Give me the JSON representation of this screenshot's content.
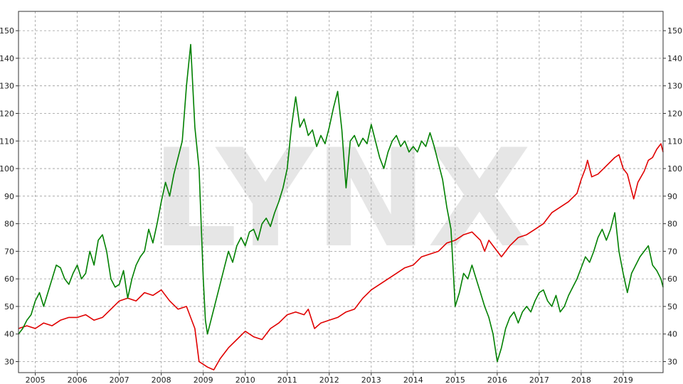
{
  "chart_data": {
    "type": "line",
    "title": "",
    "xlabel": "",
    "ylabel": "",
    "watermark": "LYNX",
    "xlim": [
      2004.6,
      2019.95
    ],
    "ylim": [
      26,
      157
    ],
    "x_ticks": [
      2005,
      2006,
      2007,
      2008,
      2009,
      2010,
      2011,
      2012,
      2013,
      2014,
      2015,
      2016,
      2017,
      2018,
      2019
    ],
    "y_ticks": [
      30,
      40,
      50,
      60,
      70,
      80,
      90,
      100,
      110,
      120,
      130,
      140,
      150
    ],
    "grid": true,
    "legend": "none",
    "series": [
      {
        "color": "#e00000",
        "points": [
          [
            2004.6,
            42
          ],
          [
            2004.8,
            43
          ],
          [
            2005.0,
            42
          ],
          [
            2005.2,
            44
          ],
          [
            2005.4,
            43
          ],
          [
            2005.6,
            45
          ],
          [
            2005.8,
            46
          ],
          [
            2006.0,
            46
          ],
          [
            2006.2,
            47
          ],
          [
            2006.4,
            45
          ],
          [
            2006.6,
            46
          ],
          [
            2006.8,
            49
          ],
          [
            2007.0,
            52
          ],
          [
            2007.2,
            53
          ],
          [
            2007.4,
            52
          ],
          [
            2007.6,
            55
          ],
          [
            2007.8,
            54
          ],
          [
            2008.0,
            56
          ],
          [
            2008.2,
            52
          ],
          [
            2008.4,
            49
          ],
          [
            2008.6,
            50
          ],
          [
            2008.8,
            42
          ],
          [
            2008.9,
            30
          ],
          [
            2009.1,
            28
          ],
          [
            2009.25,
            27
          ],
          [
            2009.4,
            31
          ],
          [
            2009.6,
            35
          ],
          [
            2009.8,
            38
          ],
          [
            2010.0,
            41
          ],
          [
            2010.2,
            39
          ],
          [
            2010.4,
            38
          ],
          [
            2010.6,
            42
          ],
          [
            2010.8,
            44
          ],
          [
            2011.0,
            47
          ],
          [
            2011.2,
            48
          ],
          [
            2011.4,
            47
          ],
          [
            2011.5,
            49
          ],
          [
            2011.65,
            42
          ],
          [
            2011.8,
            44
          ],
          [
            2012.0,
            45
          ],
          [
            2012.2,
            46
          ],
          [
            2012.4,
            48
          ],
          [
            2012.6,
            49
          ],
          [
            2012.8,
            53
          ],
          [
            2013.0,
            56
          ],
          [
            2013.2,
            58
          ],
          [
            2013.4,
            60
          ],
          [
            2013.6,
            62
          ],
          [
            2013.8,
            64
          ],
          [
            2014.0,
            65
          ],
          [
            2014.2,
            68
          ],
          [
            2014.4,
            69
          ],
          [
            2014.6,
            70
          ],
          [
            2014.8,
            73
          ],
          [
            2015.0,
            74
          ],
          [
            2015.2,
            76
          ],
          [
            2015.4,
            77
          ],
          [
            2015.6,
            74
          ],
          [
            2015.7,
            70
          ],
          [
            2015.8,
            74
          ],
          [
            2016.0,
            70
          ],
          [
            2016.1,
            68
          ],
          [
            2016.3,
            72
          ],
          [
            2016.5,
            75
          ],
          [
            2016.7,
            76
          ],
          [
            2016.9,
            78
          ],
          [
            2017.1,
            80
          ],
          [
            2017.3,
            84
          ],
          [
            2017.5,
            86
          ],
          [
            2017.7,
            88
          ],
          [
            2017.9,
            91
          ],
          [
            2018.0,
            96
          ],
          [
            2018.1,
            100
          ],
          [
            2018.15,
            103
          ],
          [
            2018.25,
            97
          ],
          [
            2018.4,
            98
          ],
          [
            2018.6,
            101
          ],
          [
            2018.8,
            104
          ],
          [
            2018.9,
            105
          ],
          [
            2019.0,
            100
          ],
          [
            2019.1,
            98
          ],
          [
            2019.2,
            92
          ],
          [
            2019.25,
            89
          ],
          [
            2019.35,
            95
          ],
          [
            2019.5,
            99
          ],
          [
            2019.6,
            103
          ],
          [
            2019.7,
            104
          ],
          [
            2019.8,
            107
          ],
          [
            2019.9,
            109
          ],
          [
            2019.95,
            106
          ]
        ]
      },
      {
        "color": "#008000",
        "points": [
          [
            2004.6,
            40
          ],
          [
            2004.7,
            42
          ],
          [
            2004.8,
            45
          ],
          [
            2004.9,
            47
          ],
          [
            2005.0,
            52
          ],
          [
            2005.1,
            55
          ],
          [
            2005.2,
            50
          ],
          [
            2005.3,
            55
          ],
          [
            2005.4,
            60
          ],
          [
            2005.5,
            65
          ],
          [
            2005.6,
            64
          ],
          [
            2005.7,
            60
          ],
          [
            2005.8,
            58
          ],
          [
            2005.9,
            62
          ],
          [
            2006.0,
            65
          ],
          [
            2006.1,
            60
          ],
          [
            2006.2,
            62
          ],
          [
            2006.3,
            70
          ],
          [
            2006.4,
            65
          ],
          [
            2006.5,
            74
          ],
          [
            2006.6,
            76
          ],
          [
            2006.7,
            70
          ],
          [
            2006.8,
            60
          ],
          [
            2006.9,
            57
          ],
          [
            2007.0,
            58
          ],
          [
            2007.1,
            63
          ],
          [
            2007.2,
            53
          ],
          [
            2007.3,
            60
          ],
          [
            2007.4,
            65
          ],
          [
            2007.5,
            68
          ],
          [
            2007.6,
            70
          ],
          [
            2007.7,
            78
          ],
          [
            2007.8,
            73
          ],
          [
            2007.9,
            80
          ],
          [
            2008.0,
            88
          ],
          [
            2008.1,
            95
          ],
          [
            2008.2,
            90
          ],
          [
            2008.3,
            98
          ],
          [
            2008.4,
            104
          ],
          [
            2008.5,
            110
          ],
          [
            2008.6,
            130
          ],
          [
            2008.7,
            145
          ],
          [
            2008.8,
            115
          ],
          [
            2008.9,
            100
          ],
          [
            2009.0,
            60
          ],
          [
            2009.05,
            45
          ],
          [
            2009.1,
            40
          ],
          [
            2009.2,
            46
          ],
          [
            2009.3,
            52
          ],
          [
            2009.4,
            58
          ],
          [
            2009.5,
            64
          ],
          [
            2009.6,
            70
          ],
          [
            2009.7,
            66
          ],
          [
            2009.8,
            72
          ],
          [
            2009.9,
            75
          ],
          [
            2010.0,
            72
          ],
          [
            2010.1,
            77
          ],
          [
            2010.2,
            78
          ],
          [
            2010.3,
            74
          ],
          [
            2010.4,
            80
          ],
          [
            2010.5,
            82
          ],
          [
            2010.6,
            79
          ],
          [
            2010.7,
            84
          ],
          [
            2010.8,
            88
          ],
          [
            2010.9,
            93
          ],
          [
            2011.0,
            100
          ],
          [
            2011.1,
            115
          ],
          [
            2011.2,
            126
          ],
          [
            2011.3,
            115
          ],
          [
            2011.4,
            118
          ],
          [
            2011.5,
            112
          ],
          [
            2011.6,
            114
          ],
          [
            2011.7,
            108
          ],
          [
            2011.8,
            112
          ],
          [
            2011.9,
            109
          ],
          [
            2012.0,
            115
          ],
          [
            2012.1,
            122
          ],
          [
            2012.2,
            128
          ],
          [
            2012.3,
            114
          ],
          [
            2012.4,
            93
          ],
          [
            2012.5,
            110
          ],
          [
            2012.6,
            112
          ],
          [
            2012.7,
            108
          ],
          [
            2012.8,
            111
          ],
          [
            2012.9,
            109
          ],
          [
            2013.0,
            116
          ],
          [
            2013.1,
            110
          ],
          [
            2013.2,
            104
          ],
          [
            2013.3,
            100
          ],
          [
            2013.4,
            106
          ],
          [
            2013.5,
            110
          ],
          [
            2013.6,
            112
          ],
          [
            2013.7,
            108
          ],
          [
            2013.8,
            110
          ],
          [
            2013.9,
            106
          ],
          [
            2014.0,
            108
          ],
          [
            2014.1,
            106
          ],
          [
            2014.2,
            110
          ],
          [
            2014.3,
            108
          ],
          [
            2014.4,
            113
          ],
          [
            2014.5,
            108
          ],
          [
            2014.6,
            102
          ],
          [
            2014.7,
            96
          ],
          [
            2014.8,
            86
          ],
          [
            2014.9,
            78
          ],
          [
            2015.0,
            50
          ],
          [
            2015.1,
            55
          ],
          [
            2015.2,
            62
          ],
          [
            2015.3,
            60
          ],
          [
            2015.4,
            65
          ],
          [
            2015.5,
            60
          ],
          [
            2015.6,
            55
          ],
          [
            2015.7,
            50
          ],
          [
            2015.8,
            46
          ],
          [
            2015.9,
            40
          ],
          [
            2016.0,
            30
          ],
          [
            2016.1,
            35
          ],
          [
            2016.2,
            42
          ],
          [
            2016.3,
            46
          ],
          [
            2016.4,
            48
          ],
          [
            2016.5,
            44
          ],
          [
            2016.6,
            48
          ],
          [
            2016.7,
            50
          ],
          [
            2016.8,
            48
          ],
          [
            2016.9,
            52
          ],
          [
            2017.0,
            55
          ],
          [
            2017.1,
            56
          ],
          [
            2017.2,
            52
          ],
          [
            2017.3,
            50
          ],
          [
            2017.4,
            54
          ],
          [
            2017.5,
            48
          ],
          [
            2017.6,
            50
          ],
          [
            2017.7,
            54
          ],
          [
            2017.8,
            57
          ],
          [
            2017.9,
            60
          ],
          [
            2018.0,
            64
          ],
          [
            2018.1,
            68
          ],
          [
            2018.2,
            66
          ],
          [
            2018.3,
            70
          ],
          [
            2018.4,
            75
          ],
          [
            2018.5,
            78
          ],
          [
            2018.6,
            74
          ],
          [
            2018.7,
            78
          ],
          [
            2018.8,
            84
          ],
          [
            2018.9,
            70
          ],
          [
            2019.0,
            62
          ],
          [
            2019.1,
            55
          ],
          [
            2019.2,
            62
          ],
          [
            2019.3,
            65
          ],
          [
            2019.4,
            68
          ],
          [
            2019.5,
            70
          ],
          [
            2019.6,
            72
          ],
          [
            2019.7,
            65
          ],
          [
            2019.8,
            63
          ],
          [
            2019.9,
            60
          ],
          [
            2019.95,
            57
          ]
        ]
      }
    ]
  }
}
